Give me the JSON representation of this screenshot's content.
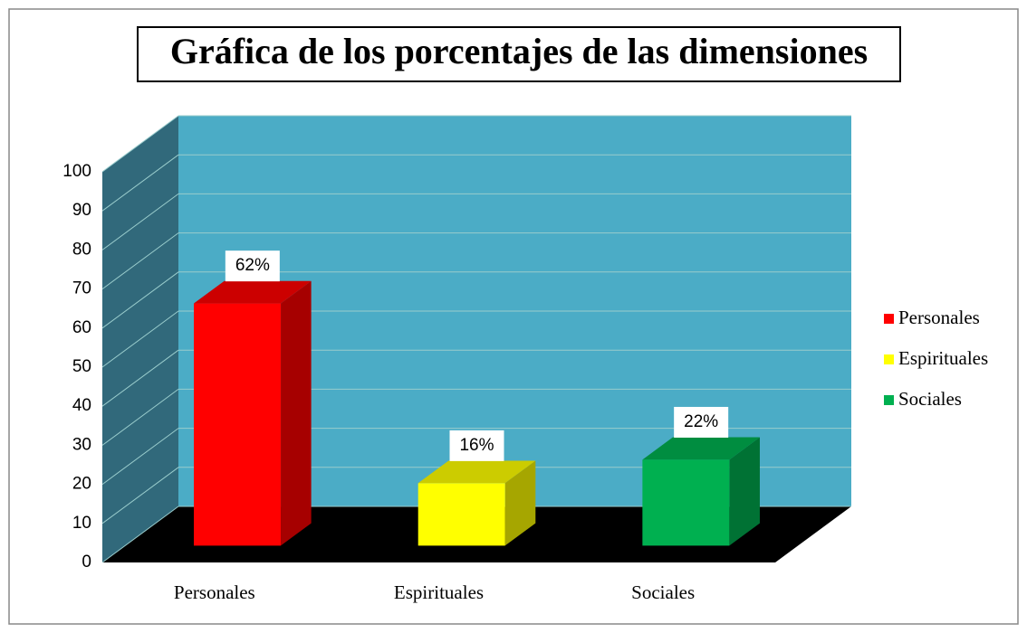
{
  "chart_data": {
    "type": "bar3d",
    "title": "Gráfica de los porcentajes de las dimensiones",
    "categories": [
      "Personales",
      "Espirituales",
      "Sociales"
    ],
    "values": [
      62,
      16,
      22
    ],
    "value_labels": [
      "62%",
      "16%",
      "22%"
    ],
    "colors": [
      "#ff0000",
      "#ffff00",
      "#00b050"
    ],
    "ylim": [
      0,
      100
    ],
    "yticks": [
      0,
      10,
      20,
      30,
      40,
      50,
      60,
      70,
      80,
      90,
      100
    ],
    "grid": true,
    "legend": "right"
  }
}
